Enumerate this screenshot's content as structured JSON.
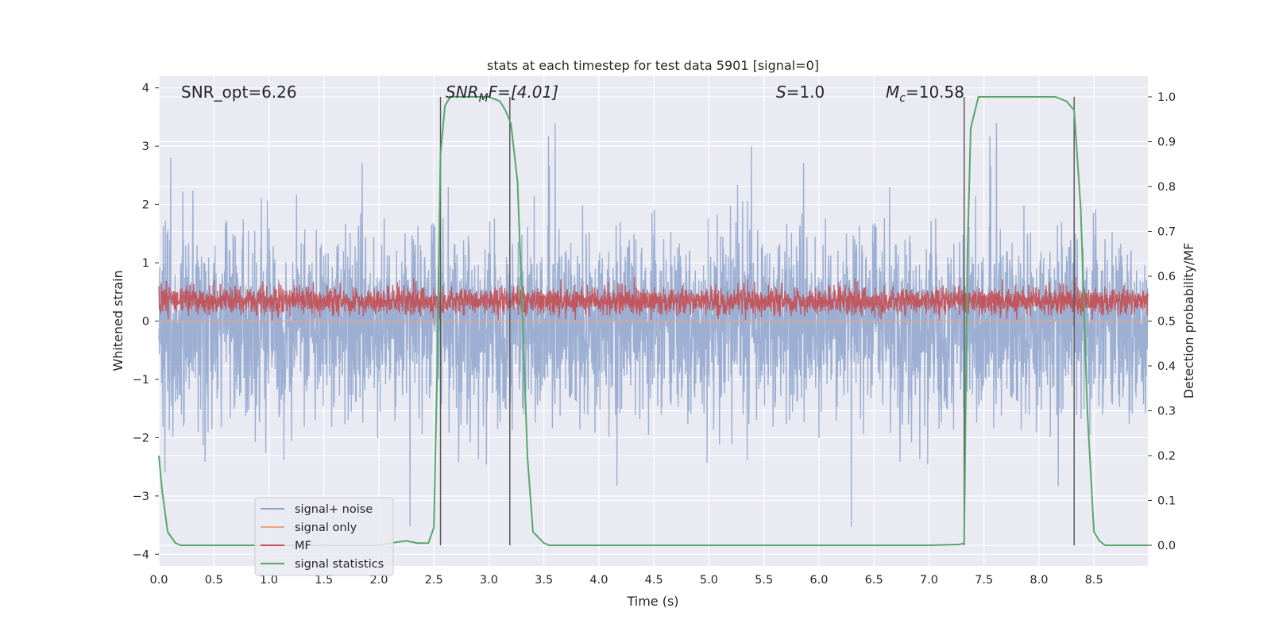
{
  "chart_data": {
    "type": "line",
    "title": "stats at each timestep for test data 5901 [signal=0]",
    "xlabel": "Time (s)",
    "ylabel": "Whitened strain",
    "y2label": "Detection probability/MF",
    "xlim": [
      0.0,
      8.99
    ],
    "ylim": [
      -4.2,
      4.2
    ],
    "y2lim": [
      -0.046,
      1.046
    ],
    "xticks": [
      "0.0",
      "0.5",
      "1.0",
      "1.5",
      "2.0",
      "2.5",
      "3.0",
      "3.5",
      "4.0",
      "4.5",
      "5.0",
      "5.5",
      "6.0",
      "6.5",
      "7.0",
      "7.5",
      "8.0",
      "8.5"
    ],
    "yticks": [
      "4",
      "3",
      "2",
      "1",
      "0",
      "−1",
      "−2",
      "−3",
      "−4"
    ],
    "y2ticks": [
      "1.0",
      "0.9",
      "0.8",
      "0.7",
      "0.6",
      "0.5",
      "0.4",
      "0.3",
      "0.2",
      "0.1",
      "0.0"
    ],
    "grid": true,
    "legend_position": "lower-left",
    "annotations": {
      "snr_opt": "SNR_opt=6.26",
      "snr_mf_prefix": "SNR",
      "snr_mf_sub": "M",
      "snr_mf_suffix": "F=[4.01]",
      "s_prefix": "S",
      "s_value": "=1.0",
      "mc_prefix": "M",
      "mc_sub": "c",
      "mc_value": "=10.58"
    },
    "series": [
      {
        "name": "signal+ noise",
        "color": "#8ea4cc",
        "axis": "left",
        "description_values": {
          "mean": 0.0,
          "std": 0.7,
          "max": 4.0,
          "min": -3.6
        }
      },
      {
        "name": "signal only",
        "color": "#e8a582",
        "axis": "left",
        "values_constant": 0.0
      },
      {
        "name": "MF",
        "color": "#c44e52",
        "axis": "left",
        "range": [
          0.0,
          0.95
        ]
      },
      {
        "name": "signal statistics",
        "color": "#55a868",
        "axis": "right",
        "x": [
          0.0,
          0.03,
          0.08,
          0.15,
          0.2,
          0.5,
          1.0,
          1.5,
          1.8,
          2.0,
          2.1,
          2.25,
          2.35,
          2.45,
          2.5,
          2.53,
          2.56,
          2.6,
          2.65,
          2.7,
          2.8,
          3.0,
          3.1,
          3.15,
          3.2,
          3.26,
          3.3,
          3.35,
          3.4,
          3.5,
          3.55,
          3.6,
          4.0,
          5.0,
          6.0,
          7.0,
          7.28,
          7.32,
          7.35,
          7.38,
          7.45,
          7.5,
          8.0,
          8.15,
          8.25,
          8.32,
          8.38,
          8.44,
          8.5,
          8.55,
          8.6,
          8.99
        ],
        "values": [
          0.2,
          0.12,
          0.03,
          0.005,
          0.0,
          0.0,
          0.0,
          0.0,
          0.0,
          0.0,
          0.005,
          0.01,
          0.005,
          0.005,
          0.04,
          0.4,
          0.87,
          0.98,
          1.0,
          1.0,
          1.0,
          1.0,
          0.99,
          0.97,
          0.94,
          0.81,
          0.55,
          0.2,
          0.03,
          0.005,
          0.0,
          0.0,
          0.0,
          0.0,
          0.0,
          0.0,
          0.002,
          0.005,
          0.65,
          0.93,
          1.0,
          1.0,
          1.0,
          1.0,
          0.99,
          0.97,
          0.75,
          0.3,
          0.03,
          0.01,
          0.0,
          0.0
        ]
      }
    ],
    "vertical_lines_x": [
      2.56,
      3.19,
      7.32,
      8.32
    ],
    "vertical_line_color": "#5a5a5a"
  }
}
